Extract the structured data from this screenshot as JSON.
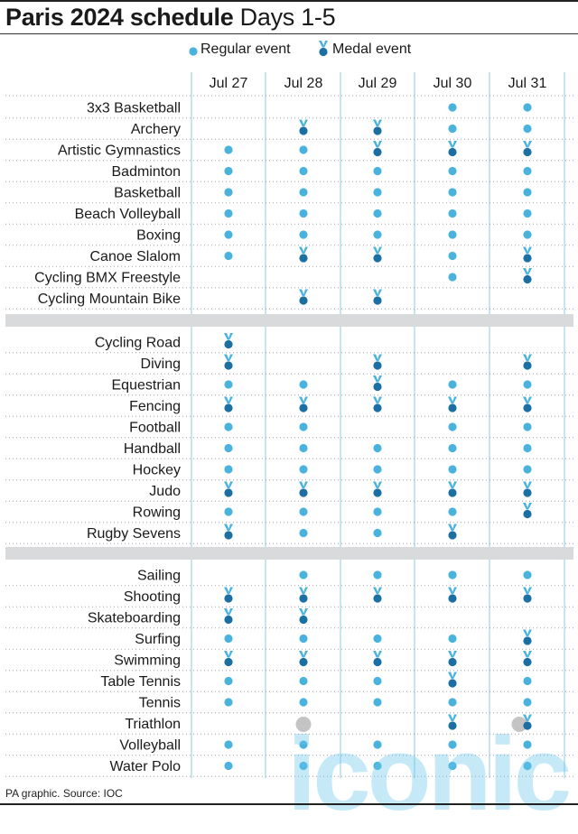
{
  "title_bold": "Paris 2024 schedule",
  "title_rest": "Days 1-5",
  "legend": {
    "regular": "Regular event",
    "medal": "Medal event"
  },
  "source": "PA graphic. Source: IOC",
  "watermark": "iconic",
  "colors": {
    "accent": "#4ab3dd",
    "medal": "#1c6fa3",
    "separator": "#d9dadb",
    "gridline": "#8ecbe3",
    "dotted": "#9aa0a6",
    "muted": "#c4c4c4"
  },
  "chart_data": {
    "type": "table",
    "categories": [
      "Jul 27",
      "Jul 28",
      "Jul 29",
      "Jul 30",
      "Jul 31"
    ],
    "groups": [
      [
        {
          "sport": "3x3 Basketball",
          "days": [
            "",
            "",
            "",
            "R",
            "R"
          ]
        },
        {
          "sport": "Archery",
          "days": [
            "",
            "M",
            "M",
            "R",
            "R"
          ]
        },
        {
          "sport": "Artistic Gymnastics",
          "days": [
            "R",
            "R",
            "M",
            "M",
            "M"
          ]
        },
        {
          "sport": "Badminton",
          "days": [
            "R",
            "R",
            "R",
            "R",
            "R"
          ]
        },
        {
          "sport": "Basketball",
          "days": [
            "R",
            "R",
            "R",
            "R",
            "R"
          ]
        },
        {
          "sport": "Beach Volleyball",
          "days": [
            "R",
            "R",
            "R",
            "R",
            "R"
          ]
        },
        {
          "sport": "Boxing",
          "days": [
            "R",
            "R",
            "R",
            "R",
            "R"
          ]
        },
        {
          "sport": "Canoe Slalom",
          "days": [
            "R",
            "M",
            "M",
            "R",
            "M"
          ]
        },
        {
          "sport": "Cycling BMX Freestyle",
          "days": [
            "",
            "",
            "",
            "R",
            "M"
          ]
        },
        {
          "sport": "Cycling Mountain Bike",
          "days": [
            "",
            "M",
            "M",
            "",
            ""
          ]
        }
      ],
      [
        {
          "sport": "Cycling Road",
          "days": [
            "M",
            "",
            "",
            "",
            ""
          ]
        },
        {
          "sport": "Diving",
          "days": [
            "M",
            "",
            "M",
            "",
            "M"
          ]
        },
        {
          "sport": "Equestrian",
          "days": [
            "R",
            "R",
            "M",
            "R",
            "R"
          ]
        },
        {
          "sport": "Fencing",
          "days": [
            "M",
            "M",
            "M",
            "M",
            "M"
          ]
        },
        {
          "sport": "Football",
          "days": [
            "R",
            "R",
            "",
            "R",
            "R"
          ]
        },
        {
          "sport": "Handball",
          "days": [
            "R",
            "R",
            "R",
            "R",
            "R"
          ]
        },
        {
          "sport": "Hockey",
          "days": [
            "R",
            "R",
            "R",
            "R",
            "R"
          ]
        },
        {
          "sport": "Judo",
          "days": [
            "M",
            "M",
            "M",
            "M",
            "M"
          ]
        },
        {
          "sport": "Rowing",
          "days": [
            "R",
            "R",
            "R",
            "R",
            "M"
          ]
        },
        {
          "sport": "Rugby Sevens",
          "days": [
            "M",
            "R",
            "R",
            "M",
            ""
          ]
        }
      ],
      [
        {
          "sport": "Sailing",
          "days": [
            "",
            "R",
            "R",
            "R",
            "R"
          ]
        },
        {
          "sport": "Shooting",
          "days": [
            "M",
            "M",
            "M",
            "M",
            "M"
          ]
        },
        {
          "sport": "Skateboarding",
          "days": [
            "M",
            "M",
            "",
            "",
            ""
          ]
        },
        {
          "sport": "Surfing",
          "days": [
            "R",
            "R",
            "R",
            "R",
            "M"
          ]
        },
        {
          "sport": "Swimming",
          "days": [
            "M",
            "M",
            "M",
            "M",
            "M"
          ]
        },
        {
          "sport": "Table Tennis",
          "days": [
            "R",
            "R",
            "R",
            "M",
            "R"
          ]
        },
        {
          "sport": "Tennis",
          "days": [
            "R",
            "R",
            "R",
            "R",
            "R"
          ]
        },
        {
          "sport": "Triathlon",
          "days": [
            "",
            "G",
            "",
            "M",
            "GM"
          ]
        },
        {
          "sport": "Volleyball",
          "days": [
            "R",
            "R",
            "R",
            "R",
            "R"
          ]
        },
        {
          "sport": "Water Polo",
          "days": [
            "R",
            "R",
            "R",
            "R",
            "R"
          ]
        }
      ]
    ]
  }
}
